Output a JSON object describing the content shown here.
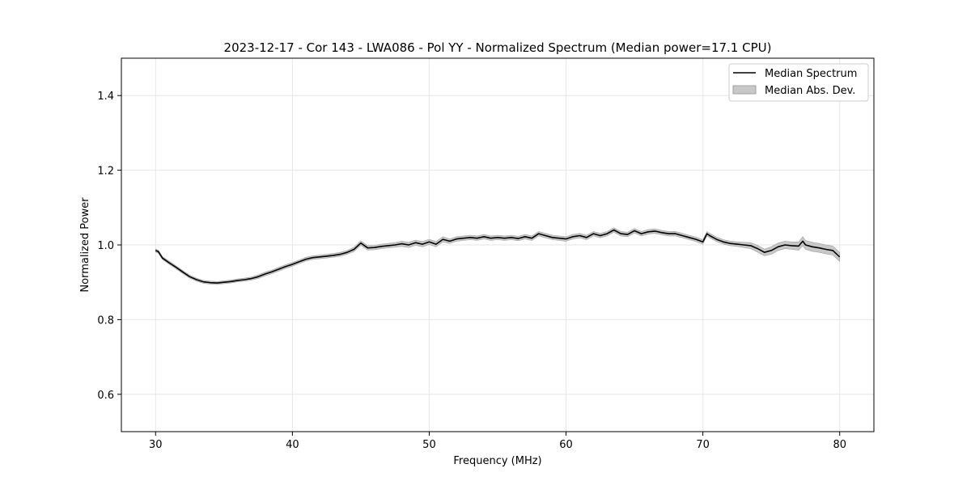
{
  "chart_data": {
    "type": "line",
    "title": "2023-12-17 - Cor 143 - LWA086 - Pol YY - Normalized Spectrum (Median power=17.1 CPU)",
    "xlabel": "Frequency (MHz)",
    "ylabel": "Normalized Power",
    "xlim": [
      27.5,
      82.5
    ],
    "ylim": [
      0.5,
      1.5
    ],
    "xticks": [
      30,
      40,
      50,
      60,
      70,
      80
    ],
    "xtick_labels": [
      "30",
      "40",
      "50",
      "60",
      "70",
      "80"
    ],
    "yticks": [
      0.6,
      0.8,
      1.0,
      1.2,
      1.4
    ],
    "ytick_labels": [
      "0.6",
      "0.8",
      "1.0",
      "1.2",
      "1.4"
    ],
    "grid": true,
    "legend_position": "top-right",
    "colors": {
      "line": "#000000",
      "band_fill": "#c8c8c8",
      "band_edge": "#a0a0a0",
      "grid": "#e6e6e6"
    },
    "series": [
      {
        "name": "Median Spectrum",
        "kind": "line",
        "x": [
          30.0,
          30.2,
          30.5,
          31.0,
          31.5,
          32.0,
          32.5,
          33.0,
          33.5,
          34.0,
          34.5,
          35.0,
          35.5,
          36.0,
          36.5,
          37.0,
          37.5,
          38.0,
          38.5,
          39.0,
          39.5,
          40.0,
          40.5,
          41.0,
          41.5,
          42.0,
          42.5,
          43.0,
          43.5,
          44.0,
          44.5,
          45.0,
          45.5,
          46.0,
          46.5,
          47.0,
          47.5,
          48.0,
          48.5,
          49.0,
          49.5,
          50.0,
          50.5,
          51.0,
          51.5,
          52.0,
          52.5,
          53.0,
          53.5,
          54.0,
          54.5,
          55.0,
          55.5,
          56.0,
          56.5,
          57.0,
          57.5,
          58.0,
          58.5,
          59.0,
          59.5,
          60.0,
          60.5,
          61.0,
          61.5,
          62.0,
          62.5,
          63.0,
          63.5,
          64.0,
          64.5,
          65.0,
          65.5,
          66.0,
          66.5,
          67.0,
          67.5,
          68.0,
          68.5,
          69.0,
          69.5,
          70.0,
          70.3,
          70.5,
          71.0,
          71.5,
          72.0,
          72.5,
          73.0,
          73.5,
          74.0,
          74.5,
          75.0,
          75.5,
          76.0,
          76.5,
          77.0,
          77.3,
          77.5,
          78.0,
          78.5,
          79.0,
          79.5,
          80.0
        ],
        "y": [
          0.985,
          0.982,
          0.965,
          0.952,
          0.94,
          0.927,
          0.915,
          0.907,
          0.901,
          0.899,
          0.898,
          0.9,
          0.902,
          0.905,
          0.907,
          0.91,
          0.915,
          0.922,
          0.928,
          0.935,
          0.942,
          0.948,
          0.955,
          0.962,
          0.966,
          0.968,
          0.97,
          0.972,
          0.975,
          0.98,
          0.988,
          1.005,
          0.992,
          0.993,
          0.996,
          0.998,
          1.0,
          1.003,
          1.0,
          1.006,
          1.002,
          1.008,
          1.002,
          1.015,
          1.01,
          1.016,
          1.018,
          1.02,
          1.018,
          1.022,
          1.018,
          1.02,
          1.018,
          1.02,
          1.017,
          1.022,
          1.018,
          1.03,
          1.025,
          1.02,
          1.018,
          1.016,
          1.022,
          1.025,
          1.02,
          1.03,
          1.025,
          1.03,
          1.04,
          1.03,
          1.028,
          1.038,
          1.03,
          1.035,
          1.037,
          1.033,
          1.03,
          1.03,
          1.025,
          1.02,
          1.015,
          1.008,
          1.03,
          1.025,
          1.015,
          1.008,
          1.004,
          1.002,
          1.0,
          0.998,
          0.99,
          0.98,
          0.985,
          0.995,
          1.0,
          0.998,
          0.997,
          1.01,
          1.0,
          0.995,
          0.992,
          0.988,
          0.985,
          0.968
        ]
      },
      {
        "name": "Median Abs. Dev.",
        "kind": "band",
        "x": [
          30.0,
          30.2,
          30.5,
          31.0,
          31.5,
          32.0,
          32.5,
          33.0,
          33.5,
          34.0,
          34.5,
          35.0,
          35.5,
          36.0,
          36.5,
          37.0,
          37.5,
          38.0,
          38.5,
          39.0,
          39.5,
          40.0,
          40.5,
          41.0,
          41.5,
          42.0,
          42.5,
          43.0,
          43.5,
          44.0,
          44.5,
          45.0,
          45.5,
          46.0,
          46.5,
          47.0,
          47.5,
          48.0,
          48.5,
          49.0,
          49.5,
          50.0,
          50.5,
          51.0,
          51.5,
          52.0,
          52.5,
          53.0,
          53.5,
          54.0,
          54.5,
          55.0,
          55.5,
          56.0,
          56.5,
          57.0,
          57.5,
          58.0,
          58.5,
          59.0,
          59.5,
          60.0,
          60.5,
          61.0,
          61.5,
          62.0,
          62.5,
          63.0,
          63.5,
          64.0,
          64.5,
          65.0,
          65.5,
          66.0,
          66.5,
          67.0,
          67.5,
          68.0,
          68.5,
          69.0,
          69.5,
          70.0,
          70.3,
          70.5,
          71.0,
          71.5,
          72.0,
          72.5,
          73.0,
          73.5,
          74.0,
          74.5,
          75.0,
          75.5,
          76.0,
          76.5,
          77.0,
          77.3,
          77.5,
          78.0,
          78.5,
          79.0,
          79.5,
          80.0
        ],
        "dev": [
          0.004,
          0.004,
          0.004,
          0.004,
          0.004,
          0.004,
          0.004,
          0.004,
          0.004,
          0.004,
          0.004,
          0.004,
          0.004,
          0.004,
          0.004,
          0.004,
          0.005,
          0.005,
          0.005,
          0.005,
          0.005,
          0.005,
          0.005,
          0.005,
          0.005,
          0.005,
          0.005,
          0.005,
          0.005,
          0.005,
          0.006,
          0.006,
          0.006,
          0.006,
          0.006,
          0.006,
          0.006,
          0.007,
          0.007,
          0.007,
          0.007,
          0.007,
          0.007,
          0.007,
          0.006,
          0.006,
          0.006,
          0.006,
          0.006,
          0.006,
          0.006,
          0.006,
          0.006,
          0.006,
          0.006,
          0.006,
          0.006,
          0.006,
          0.006,
          0.006,
          0.006,
          0.006,
          0.006,
          0.006,
          0.006,
          0.006,
          0.006,
          0.006,
          0.006,
          0.006,
          0.006,
          0.006,
          0.006,
          0.006,
          0.006,
          0.006,
          0.006,
          0.006,
          0.006,
          0.006,
          0.006,
          0.006,
          0.006,
          0.006,
          0.006,
          0.006,
          0.006,
          0.006,
          0.007,
          0.008,
          0.009,
          0.009,
          0.01,
          0.01,
          0.01,
          0.01,
          0.011,
          0.012,
          0.012,
          0.012,
          0.012,
          0.012,
          0.012,
          0.012
        ]
      }
    ]
  }
}
